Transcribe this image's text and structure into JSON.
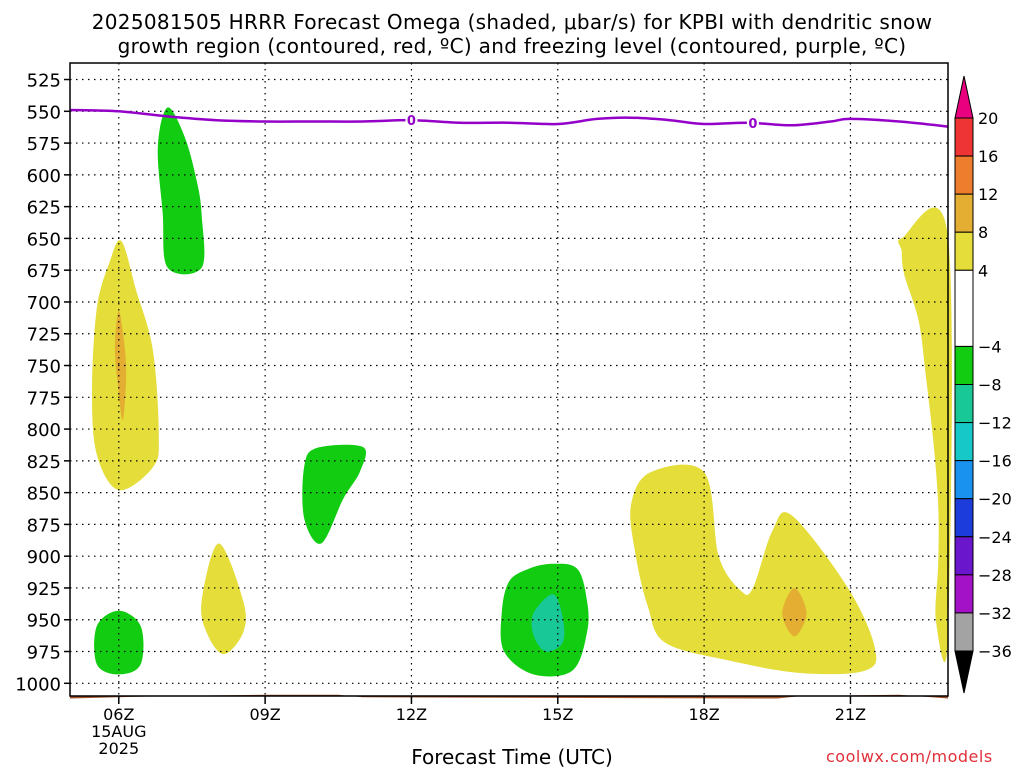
{
  "title_line1": "2025081505 HRRR Forecast Omega (shaded, μbar/s) for KPBI with dendritic snow",
  "title_line2": "growth region (contoured, red, ºC) and freezing level (contoured, purple, ºC)",
  "watermark": "coolwx.com/models",
  "chart_data": {
    "type": "heatmap",
    "title": "2025081505 HRRR Forecast Omega (shaded, μbar/s) for KPBI with dendritic snow growth region (contoured, red, ºC) and freezing level (contoured, purple, ºC)",
    "xlabel": "Forecast Time (UTC)",
    "ylabel": "",
    "x_range_hours": [
      5,
      23
    ],
    "y_range_hPa": [
      512,
      1010
    ],
    "y_reversed": true,
    "grid": true,
    "x_ticks": [
      {
        "hour": 6,
        "label": "06Z",
        "date_line1": "15AUG",
        "date_line2": "2025"
      },
      {
        "hour": 9,
        "label": "09Z"
      },
      {
        "hour": 12,
        "label": "12Z"
      },
      {
        "hour": 15,
        "label": "15Z"
      },
      {
        "hour": 18,
        "label": "18Z"
      },
      {
        "hour": 21,
        "label": "21Z"
      }
    ],
    "y_ticks": [
      525,
      550,
      575,
      600,
      625,
      650,
      675,
      700,
      725,
      750,
      775,
      800,
      825,
      850,
      875,
      900,
      925,
      950,
      975,
      1000
    ],
    "colorbar": {
      "labels": [
        "20",
        "16",
        "12",
        "8",
        "4",
        "−4",
        "−8",
        "−12",
        "−16",
        "−20",
        "−24",
        "−28",
        "−32",
        "−36"
      ],
      "bands": [
        {
          "from": 20,
          "to": 24,
          "color": "#e8007e"
        },
        {
          "from": 16,
          "to": 20,
          "color": "#ee3434"
        },
        {
          "from": 12,
          "to": 16,
          "color": "#ee7e2e"
        },
        {
          "from": 8,
          "to": 12,
          "color": "#e3ae32"
        },
        {
          "from": 4,
          "to": 8,
          "color": "#e4dd3a"
        },
        {
          "from": -4,
          "to": 4,
          "color": "#ffffff"
        },
        {
          "from": -8,
          "to": -4,
          "color": "#11cc11"
        },
        {
          "from": -12,
          "to": -8,
          "color": "#18c896"
        },
        {
          "from": -16,
          "to": -12,
          "color": "#16c8c8"
        },
        {
          "from": -20,
          "to": -16,
          "color": "#1892ee"
        },
        {
          "from": -24,
          "to": -20,
          "color": "#1c3cdc"
        },
        {
          "from": -28,
          "to": -24,
          "color": "#6a16cc"
        },
        {
          "from": -32,
          "to": -28,
          "color": "#a412c8"
        },
        {
          "from": -36,
          "to": -32,
          "color": "#a3a3a3"
        },
        {
          "from": -40,
          "to": -36,
          "color": "#000000"
        }
      ]
    },
    "freezing_level": {
      "label": "0",
      "color": "#9400c8",
      "points": [
        [
          5.0,
          549
        ],
        [
          6.0,
          550
        ],
        [
          7.0,
          554
        ],
        [
          8.0,
          557
        ],
        [
          9.0,
          558
        ],
        [
          10.0,
          558
        ],
        [
          11.0,
          558
        ],
        [
          12.0,
          557
        ],
        [
          13.0,
          559
        ],
        [
          14.0,
          559
        ],
        [
          15.0,
          560
        ],
        [
          15.8,
          556
        ],
        [
          16.5,
          555
        ],
        [
          17.3,
          557
        ],
        [
          18.0,
          560
        ],
        [
          18.9,
          559
        ],
        [
          19.8,
          561
        ],
        [
          20.6,
          558
        ],
        [
          21.0,
          556
        ],
        [
          22.0,
          558
        ],
        [
          23.0,
          562
        ]
      ],
      "label_positions_hours": [
        12.0,
        19.0
      ]
    },
    "omega_regions": [
      {
        "value_band": "4 to 8",
        "color": "#e4dd3a",
        "points": [
          [
            6.05,
            652
          ],
          [
            6.35,
            690
          ],
          [
            6.7,
            738
          ],
          [
            6.82,
            805
          ],
          [
            6.7,
            830
          ],
          [
            6.0,
            848
          ],
          [
            5.55,
            820
          ],
          [
            5.45,
            770
          ],
          [
            5.55,
            705
          ],
          [
            5.8,
            670
          ]
        ]
      },
      {
        "value_band": "8 to 12",
        "color": "#e3ae32",
        "points": [
          [
            6.0,
            707
          ],
          [
            6.12,
            735
          ],
          [
            6.15,
            760
          ],
          [
            6.08,
            793
          ],
          [
            5.98,
            765
          ],
          [
            5.92,
            735
          ]
        ]
      },
      {
        "value_band": "-8 to -4",
        "color": "#11cc11",
        "points": [
          [
            7.0,
            547
          ],
          [
            7.35,
            570
          ],
          [
            7.6,
            605
          ],
          [
            7.7,
            632
          ],
          [
            7.7,
            673
          ],
          [
            7.0,
            673
          ],
          [
            6.9,
            630
          ],
          [
            6.8,
            578
          ]
        ]
      },
      {
        "value_band": "-8 to -4",
        "color": "#11cc11",
        "points": [
          [
            10.05,
            815
          ],
          [
            11.0,
            814
          ],
          [
            10.95,
            833
          ],
          [
            10.6,
            855
          ],
          [
            10.15,
            890
          ],
          [
            9.8,
            870
          ],
          [
            9.8,
            830
          ]
        ]
      },
      {
        "value_band": "4 to 8",
        "color": "#e4dd3a",
        "points": [
          [
            8.05,
            890
          ],
          [
            8.55,
            935
          ],
          [
            8.55,
            960
          ],
          [
            8.15,
            977
          ],
          [
            7.8,
            960
          ],
          [
            7.7,
            935
          ]
        ]
      },
      {
        "value_band": "-8 to -4",
        "color": "#11cc11",
        "points": [
          [
            6.0,
            943
          ],
          [
            6.45,
            955
          ],
          [
            6.45,
            985
          ],
          [
            6.0,
            993
          ],
          [
            5.55,
            985
          ],
          [
            5.55,
            955
          ]
        ]
      },
      {
        "value_band": "-8 to -4",
        "color": "#11cc11",
        "points": [
          [
            14.9,
            906
          ],
          [
            15.4,
            910
          ],
          [
            15.6,
            935
          ],
          [
            15.6,
            960
          ],
          [
            15.3,
            990
          ],
          [
            14.5,
            993
          ],
          [
            13.9,
            975
          ],
          [
            13.85,
            945
          ],
          [
            14.0,
            920
          ],
          [
            14.4,
            910
          ]
        ]
      },
      {
        "value_band": "-12 to -8",
        "color": "#18c896",
        "points": [
          [
            14.9,
            930
          ],
          [
            15.1,
            948
          ],
          [
            15.1,
            968
          ],
          [
            14.75,
            975
          ],
          [
            14.5,
            962
          ],
          [
            14.5,
            945
          ]
        ]
      },
      {
        "value_band": "4 to 8",
        "color": "#e4dd3a",
        "points": [
          [
            16.9,
            834
          ],
          [
            18.0,
            834
          ],
          [
            18.3,
            900
          ],
          [
            18.75,
            927
          ],
          [
            19.0,
            925
          ],
          [
            19.4,
            880
          ],
          [
            19.8,
            868
          ],
          [
            20.95,
            925
          ],
          [
            21.5,
            972
          ],
          [
            21.3,
            990
          ],
          [
            20.0,
            992
          ],
          [
            18.5,
            982
          ],
          [
            17.2,
            968
          ],
          [
            16.85,
            940
          ],
          [
            16.6,
            900
          ],
          [
            16.5,
            860
          ]
        ]
      },
      {
        "value_band": "8 to 12",
        "color": "#e3ae32",
        "points": [
          [
            19.85,
            925
          ],
          [
            20.1,
            945
          ],
          [
            19.85,
            963
          ],
          [
            19.6,
            945
          ]
        ]
      },
      {
        "value_band": "4 to 8",
        "color": "#e4dd3a",
        "points": [
          [
            22.05,
            650
          ],
          [
            23.0,
            649
          ],
          [
            23.0,
            962
          ],
          [
            22.75,
            950
          ],
          [
            22.8,
            905
          ],
          [
            22.8,
            860
          ],
          [
            22.7,
            810
          ],
          [
            22.55,
            760
          ],
          [
            22.4,
            715
          ],
          [
            22.1,
            678
          ],
          [
            22.05,
            660
          ]
        ]
      }
    ],
    "surface_band": {
      "color": "#a0522d",
      "points": [
        [
          5.0,
          1012
        ],
        [
          7.0,
          1010
        ],
        [
          9.0,
          1009
        ],
        [
          10.5,
          1009
        ],
        [
          11.0,
          1011
        ],
        [
          19.5,
          1012
        ],
        [
          20.0,
          1010
        ],
        [
          22.0,
          1009
        ],
        [
          23.0,
          1012
        ]
      ]
    }
  }
}
